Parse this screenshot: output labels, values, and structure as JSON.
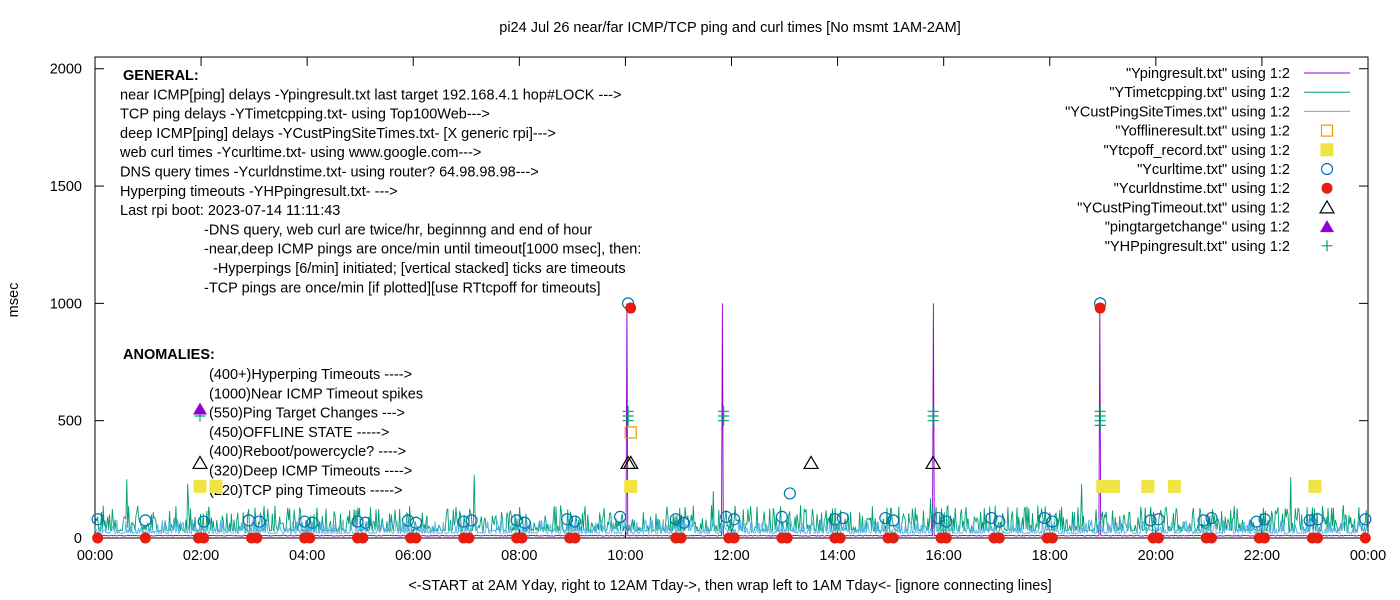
{
  "chart_data": {
    "type": "line",
    "title": "pi24 Jul 26  near/far ICMP/TCP ping and curl times [No msmt 1AM-2AM]",
    "xlabel": "<-START at 2AM Yday, right to 12AM Tday->, then wrap left to 1AM Tday<- [ignore connecting lines]",
    "ylabel": "msec",
    "xlim": [
      0,
      24
    ],
    "ylim": [
      0,
      2050
    ],
    "x_ticks": [
      "00:00",
      "02:00",
      "04:00",
      "06:00",
      "08:00",
      "10:00",
      "12:00",
      "14:00",
      "16:00",
      "18:00",
      "20:00",
      "22:00",
      "00:00"
    ],
    "y_ticks": [
      0,
      500,
      1000,
      1500,
      2000
    ],
    "grid": false,
    "legend_position": "top-right",
    "general_notes": [
      "GENERAL:",
      "near ICMP[ping] delays -Ypingresult.txt last target 192.168.4.1 hop#LOCK --->",
      "TCP ping delays -YTimetcpping.txt- using Top100Web--->",
      "deep ICMP[ping] delays -YCustPingSiteTimes.txt- [X generic rpi]--->",
      "web curl times -Ycurltime.txt- using www.google.com--->",
      "DNS query times -Ycurldnstime.txt- using router? 64.98.98.98--->",
      "Hyperping timeouts -YHPpingresult.txt- --->",
      "Last rpi boot: 2023-07-14 11:11:43",
      "-DNS query, web curl are twice/hr, beginnng and end of hour",
      "-near,deep ICMP pings are once/min until timeout[1000 msec], then:",
      "-Hyperpings [6/min] initiated; [vertical stacked] ticks are timeouts",
      "-TCP pings are once/min [if plotted][use RTtcpoff for timeouts]"
    ],
    "anomalies_heading": "ANOMALIES:",
    "anomalies": [
      {
        "label": "(400+)Hyperping Timeouts ---->",
        "marker": "plus",
        "y": 520
      },
      {
        "label": "(1000)Near ICMP Timeout spikes",
        "marker": "none",
        "y": null
      },
      {
        "label": "(550)Ping Target Changes --->",
        "marker": "filled-triangle",
        "y": 550
      },
      {
        "label": "(450)OFFLINE STATE ----->",
        "marker": "none",
        "y": null
      },
      {
        "label": "(400)Reboot/powercycle? ---->",
        "marker": "none",
        "y": null
      },
      {
        "label": "(320)Deep ICMP Timeouts ---->",
        "marker": "open-triangle",
        "y": 320
      },
      {
        "label": "(220)TCP ping Timeouts ----->",
        "marker": "filled-square",
        "y": 220
      }
    ],
    "series": [
      {
        "name": "\"Ypingresult.txt\" using 1:2",
        "style": "line",
        "color": "#9400d3",
        "baseline": 8,
        "spikes": [
          {
            "x": 10.03,
            "y": 1000
          },
          {
            "x": 11.83,
            "y": 1000
          },
          {
            "x": 15.8,
            "y": 1000
          },
          {
            "x": 18.95,
            "y": 1000
          }
        ]
      },
      {
        "name": "\"YTimetcpping.txt\" using 1:2",
        "style": "line",
        "color": "#009e73",
        "baseline": 30,
        "noise_max": 110,
        "spikes": [
          {
            "x": 0.6,
            "y": 250
          },
          {
            "x": 1.75,
            "y": 230
          },
          {
            "x": 7.15,
            "y": 270
          },
          {
            "x": 11.65,
            "y": 200
          },
          {
            "x": 15.75,
            "y": 170
          },
          {
            "x": 18.6,
            "y": 230
          },
          {
            "x": 22.55,
            "y": 260
          }
        ]
      },
      {
        "name": "\"YCustPingSiteTimes.txt\" using 1:2",
        "style": "line",
        "color": "#56b4e9",
        "baseline": 20,
        "noise_max": 60,
        "spikes": []
      },
      {
        "name": "\"Yofflineresult.txt\" using 1:2",
        "style": "open-square",
        "color": "#e69f00",
        "points": [
          {
            "x": 10.1,
            "y": 450
          }
        ]
      },
      {
        "name": "\"Ytcpoff_record.txt\" using 1:2",
        "style": "filled-square",
        "color": "#f0e442",
        "points": [
          {
            "x": 10.1,
            "y": 220
          },
          {
            "x": 19.0,
            "y": 220
          },
          {
            "x": 19.2,
            "y": 220
          },
          {
            "x": 19.85,
            "y": 220
          },
          {
            "x": 20.35,
            "y": 220
          },
          {
            "x": 23.0,
            "y": 220
          }
        ]
      },
      {
        "name": "\"Ycurltime.txt\" using 1:2",
        "style": "open-circle",
        "color": "#0072b2",
        "points": [
          {
            "x": 0.05,
            "y": 80
          },
          {
            "x": 0.95,
            "y": 75
          },
          {
            "x": 2.05,
            "y": 70
          },
          {
            "x": 2.9,
            "y": 75
          },
          {
            "x": 3.1,
            "y": 70
          },
          {
            "x": 3.95,
            "y": 70
          },
          {
            "x": 4.1,
            "y": 65
          },
          {
            "x": 4.95,
            "y": 70
          },
          {
            "x": 5.1,
            "y": 65
          },
          {
            "x": 5.9,
            "y": 75
          },
          {
            "x": 6.05,
            "y": 65
          },
          {
            "x": 6.95,
            "y": 70
          },
          {
            "x": 7.1,
            "y": 75
          },
          {
            "x": 7.95,
            "y": 75
          },
          {
            "x": 8.1,
            "y": 65
          },
          {
            "x": 8.9,
            "y": 80
          },
          {
            "x": 9.05,
            "y": 70
          },
          {
            "x": 9.9,
            "y": 90
          },
          {
            "x": 10.05,
            "y": 1000
          },
          {
            "x": 10.95,
            "y": 80
          },
          {
            "x": 11.1,
            "y": 65
          },
          {
            "x": 11.9,
            "y": 90
          },
          {
            "x": 12.05,
            "y": 80
          },
          {
            "x": 12.95,
            "y": 90
          },
          {
            "x": 13.1,
            "y": 190
          },
          {
            "x": 13.95,
            "y": 80
          },
          {
            "x": 14.1,
            "y": 85
          },
          {
            "x": 14.9,
            "y": 85
          },
          {
            "x": 15.05,
            "y": 75
          },
          {
            "x": 15.9,
            "y": 85
          },
          {
            "x": 16.05,
            "y": 70
          },
          {
            "x": 16.9,
            "y": 85
          },
          {
            "x": 17.05,
            "y": 70
          },
          {
            "x": 17.9,
            "y": 85
          },
          {
            "x": 18.05,
            "y": 70
          },
          {
            "x": 18.95,
            "y": 1000
          },
          {
            "x": 19.9,
            "y": 75
          },
          {
            "x": 20.05,
            "y": 80
          },
          {
            "x": 20.9,
            "y": 75
          },
          {
            "x": 21.05,
            "y": 85
          },
          {
            "x": 21.9,
            "y": 70
          },
          {
            "x": 22.05,
            "y": 80
          },
          {
            "x": 22.9,
            "y": 75
          },
          {
            "x": 23.05,
            "y": 80
          },
          {
            "x": 23.95,
            "y": 80
          }
        ]
      },
      {
        "name": "\"Ycurldnstime.txt\" using 1:2",
        "style": "filled-circle",
        "color": "#e51e10",
        "points": [
          {
            "x": 0.05,
            "y": 0
          },
          {
            "x": 0.95,
            "y": 0
          },
          {
            "x": 1.95,
            "y": 0
          },
          {
            "x": 2.05,
            "y": 0
          },
          {
            "x": 2.95,
            "y": 0
          },
          {
            "x": 3.05,
            "y": 0
          },
          {
            "x": 3.95,
            "y": 0
          },
          {
            "x": 4.05,
            "y": 0
          },
          {
            "x": 4.95,
            "y": 0
          },
          {
            "x": 5.05,
            "y": 0
          },
          {
            "x": 5.95,
            "y": 0
          },
          {
            "x": 6.05,
            "y": 0
          },
          {
            "x": 6.95,
            "y": 0
          },
          {
            "x": 7.05,
            "y": 0
          },
          {
            "x": 7.95,
            "y": 0
          },
          {
            "x": 8.05,
            "y": 0
          },
          {
            "x": 8.95,
            "y": 0
          },
          {
            "x": 9.05,
            "y": 0
          },
          {
            "x": 10.1,
            "y": 980
          },
          {
            "x": 10.95,
            "y": 0
          },
          {
            "x": 11.05,
            "y": 0
          },
          {
            "x": 11.95,
            "y": 0
          },
          {
            "x": 12.05,
            "y": 0
          },
          {
            "x": 12.95,
            "y": 0
          },
          {
            "x": 13.05,
            "y": 0
          },
          {
            "x": 13.95,
            "y": 0
          },
          {
            "x": 14.05,
            "y": 0
          },
          {
            "x": 14.95,
            "y": 0
          },
          {
            "x": 15.05,
            "y": 0
          },
          {
            "x": 15.95,
            "y": 0
          },
          {
            "x": 16.05,
            "y": 0
          },
          {
            "x": 16.95,
            "y": 0
          },
          {
            "x": 17.05,
            "y": 0
          },
          {
            "x": 17.95,
            "y": 0
          },
          {
            "x": 18.05,
            "y": 0
          },
          {
            "x": 18.95,
            "y": 980
          },
          {
            "x": 19.95,
            "y": 0
          },
          {
            "x": 20.05,
            "y": 0
          },
          {
            "x": 20.95,
            "y": 0
          },
          {
            "x": 21.05,
            "y": 0
          },
          {
            "x": 21.95,
            "y": 0
          },
          {
            "x": 22.05,
            "y": 0
          },
          {
            "x": 22.95,
            "y": 0
          },
          {
            "x": 23.05,
            "y": 0
          },
          {
            "x": 23.95,
            "y": 0
          }
        ]
      },
      {
        "name": "\"YCustPingTimeout.txt\" using 1:2",
        "style": "open-triangle",
        "color": "#000000",
        "points": [
          {
            "x": 10.05,
            "y": 320
          },
          {
            "x": 10.1,
            "y": 320
          },
          {
            "x": 13.5,
            "y": 320
          },
          {
            "x": 15.8,
            "y": 320
          }
        ]
      },
      {
        "name": "\"pingtargetchange\" using 1:2",
        "style": "filled-triangle",
        "color": "#9400d3",
        "points": []
      },
      {
        "name": "\"YHPpingresult.txt\" using 1:2",
        "style": "plus",
        "color": "#009e73",
        "points": [
          {
            "x": 10.05,
            "y": 500
          },
          {
            "x": 10.05,
            "y": 520
          },
          {
            "x": 10.05,
            "y": 540
          },
          {
            "x": 11.85,
            "y": 500
          },
          {
            "x": 11.85,
            "y": 520
          },
          {
            "x": 11.85,
            "y": 540
          },
          {
            "x": 15.8,
            "y": 500
          },
          {
            "x": 15.8,
            "y": 520
          },
          {
            "x": 15.8,
            "y": 540
          },
          {
            "x": 18.95,
            "y": 480
          },
          {
            "x": 18.95,
            "y": 500
          },
          {
            "x": 18.95,
            "y": 520
          },
          {
            "x": 18.95,
            "y": 540
          }
        ]
      }
    ]
  }
}
